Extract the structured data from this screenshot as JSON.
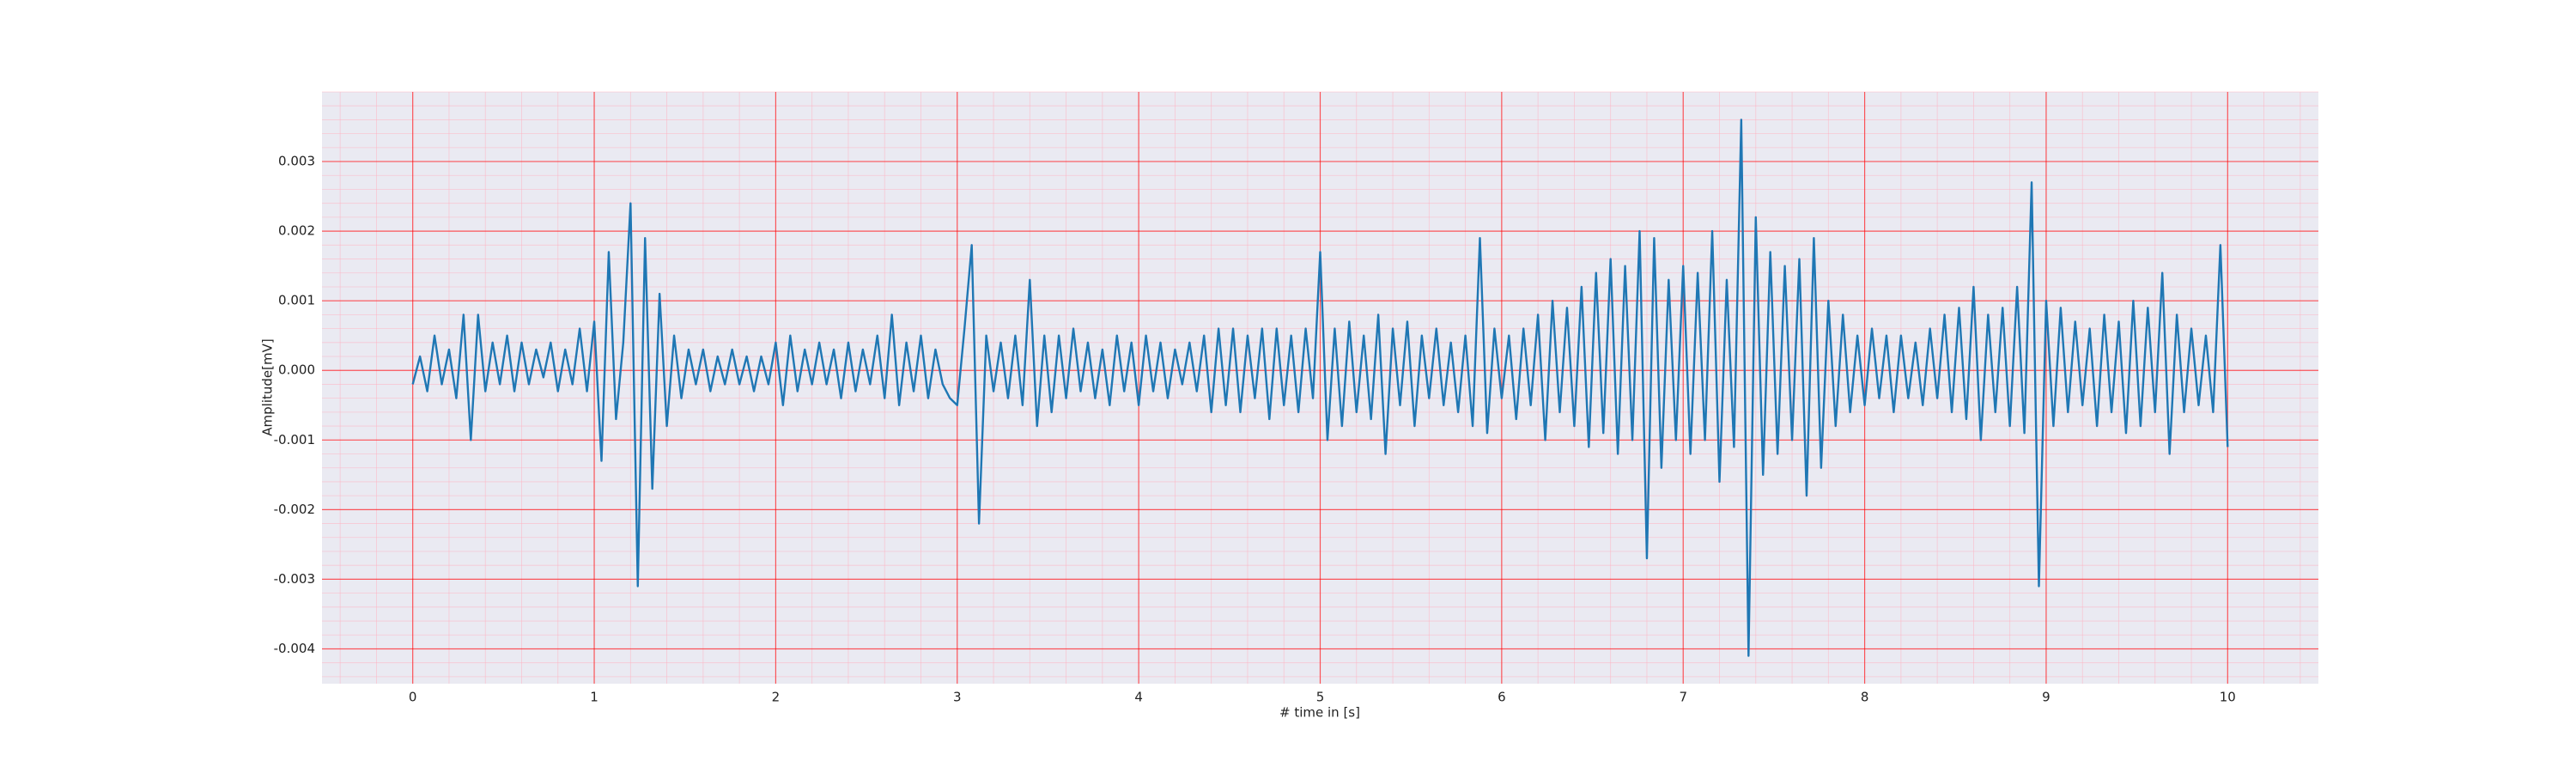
{
  "chart_data": {
    "type": "line",
    "xlabel": "# time in [s]",
    "ylabel": "Amplitude[mV]",
    "color": "#1f77b4",
    "grid": true,
    "minor_grid": true,
    "xlim": [
      -0.5,
      10.5
    ],
    "ylim": [
      -0.0045,
      0.004
    ],
    "xticks": [
      0,
      1,
      2,
      3,
      4,
      5,
      6,
      7,
      8,
      9,
      10
    ],
    "yticks": [
      -0.004,
      -0.003,
      -0.002,
      -0.001,
      {
        "value": 0,
        "label": "0.000"
      },
      0.001,
      0.002,
      0.003
    ],
    "x": [
      0,
      0.04,
      0.08,
      0.12,
      0.16,
      0.2,
      0.24,
      0.28,
      0.32,
      0.36,
      0.4,
      0.44,
      0.48,
      0.52,
      0.56,
      0.6,
      0.64,
      0.68,
      0.72,
      0.76,
      0.8,
      0.84,
      0.88,
      0.92,
      0.96,
      1,
      1.04,
      1.08,
      1.12,
      1.16,
      1.2,
      1.24,
      1.28,
      1.32,
      1.36,
      1.4,
      1.44,
      1.48,
      1.52,
      1.56,
      1.6,
      1.64,
      1.68,
      1.72,
      1.76,
      1.8,
      1.84,
      1.88,
      1.92,
      1.96,
      2,
      2.04,
      2.08,
      2.12,
      2.16,
      2.2,
      2.24,
      2.28,
      2.32,
      2.36,
      2.4,
      2.44,
      2.48,
      2.52,
      2.56,
      2.6,
      2.64,
      2.68,
      2.72,
      2.76,
      2.8,
      2.84,
      2.88,
      2.92,
      2.96,
      3,
      3.04,
      3.08,
      3.12,
      3.16,
      3.2,
      3.24,
      3.28,
      3.32,
      3.36,
      3.4,
      3.44,
      3.48,
      3.52,
      3.56,
      3.6,
      3.64,
      3.68,
      3.72,
      3.76,
      3.8,
      3.84,
      3.88,
      3.92,
      3.96,
      4,
      4.04,
      4.08,
      4.12,
      4.16,
      4.2,
      4.24,
      4.28,
      4.32,
      4.36,
      4.4,
      4.44,
      4.48,
      4.52,
      4.56,
      4.6,
      4.64,
      4.68,
      4.72,
      4.76,
      4.8,
      4.84,
      4.88,
      4.92,
      4.96,
      5,
      5.04,
      5.08,
      5.12,
      5.16,
      5.2,
      5.24,
      5.28,
      5.32,
      5.36,
      5.4,
      5.44,
      5.48,
      5.52,
      5.56,
      5.6,
      5.64,
      5.68,
      5.72,
      5.76,
      5.8,
      5.84,
      5.88,
      5.92,
      5.96,
      6,
      6.04,
      6.08,
      6.12,
      6.16,
      6.2,
      6.24,
      6.28,
      6.32,
      6.36,
      6.4,
      6.44,
      6.48,
      6.52,
      6.56,
      6.6,
      6.64,
      6.68,
      6.72,
      6.76,
      6.8,
      6.84,
      6.88,
      6.92,
      6.96,
      7,
      7.04,
      7.08,
      7.12,
      7.16,
      7.2,
      7.24,
      7.28,
      7.32,
      7.36,
      7.4,
      7.44,
      7.48,
      7.52,
      7.56,
      7.6,
      7.64,
      7.68,
      7.72,
      7.76,
      7.8,
      7.84,
      7.88,
      7.92,
      7.96,
      8,
      8.04,
      8.08,
      8.12,
      8.16,
      8.2,
      8.24,
      8.28,
      8.32,
      8.36,
      8.4,
      8.44,
      8.48,
      8.52,
      8.56,
      8.6,
      8.64,
      8.68,
      8.72,
      8.76,
      8.8,
      8.84,
      8.88,
      8.92,
      8.96,
      9,
      9.04,
      9.08,
      9.12,
      9.16,
      9.2,
      9.24,
      9.28,
      9.32,
      9.36,
      9.4,
      9.44,
      9.48,
      9.52,
      9.56,
      9.6,
      9.64,
      9.68,
      9.72,
      9.76,
      9.8,
      9.84,
      9.88,
      9.92,
      9.96,
      10
    ],
    "values": [
      -0.0002,
      0.0002,
      -0.0003,
      0.0005,
      -0.0002,
      0.0003,
      -0.0004,
      0.0008,
      -0.001,
      0.0008,
      -0.0003,
      0.0004,
      -0.0002,
      0.0005,
      -0.0003,
      0.0004,
      -0.0002,
      0.0003,
      -0.0001,
      0.0004,
      -0.0003,
      0.0003,
      -0.0002,
      0.0006,
      -0.0003,
      0.0007,
      -0.0013,
      0.0017,
      -0.0007,
      0.0004,
      0.0024,
      -0.0031,
      0.0019,
      -0.0017,
      0.0011,
      -0.0008,
      0.0005,
      -0.0004,
      0.0003,
      -0.0002,
      0.0003,
      -0.0003,
      0.0002,
      -0.0002,
      0.0003,
      -0.0002,
      0.0002,
      -0.0003,
      0.0002,
      -0.0002,
      0.0004,
      -0.0005,
      0.0005,
      -0.0003,
      0.0003,
      -0.0002,
      0.0004,
      -0.0002,
      0.0003,
      -0.0004,
      0.0004,
      -0.0003,
      0.0003,
      -0.0002,
      0.0005,
      -0.0004,
      0.0008,
      -0.0005,
      0.0004,
      -0.0003,
      0.0005,
      -0.0004,
      0.0003,
      -0.0002,
      -0.0004,
      -0.0005,
      0.0006,
      0.0018,
      -0.0022,
      0.0005,
      -0.0003,
      0.0004,
      -0.0004,
      0.0005,
      -0.0005,
      0.0013,
      -0.0008,
      0.0005,
      -0.0006,
      0.0005,
      -0.0004,
      0.0006,
      -0.0003,
      0.0004,
      -0.0004,
      0.0003,
      -0.0005,
      0.0005,
      -0.0003,
      0.0004,
      -0.0005,
      0.0005,
      -0.0003,
      0.0004,
      -0.0004,
      0.0003,
      -0.0002,
      0.0004,
      -0.0003,
      0.0005,
      -0.0006,
      0.0006,
      -0.0005,
      0.0006,
      -0.0006,
      0.0005,
      -0.0004,
      0.0006,
      -0.0007,
      0.0006,
      -0.0005,
      0.0005,
      -0.0006,
      0.0006,
      -0.0004,
      0.0017,
      -0.001,
      0.0006,
      -0.0008,
      0.0007,
      -0.0006,
      0.0005,
      -0.0007,
      0.0008,
      -0.0012,
      0.0006,
      -0.0005,
      0.0007,
      -0.0008,
      0.0005,
      -0.0004,
      0.0006,
      -0.0005,
      0.0004,
      -0.0006,
      0.0005,
      -0.0008,
      0.0019,
      -0.0009,
      0.0006,
      -0.0004,
      0.0005,
      -0.0007,
      0.0006,
      -0.0005,
      0.0008,
      -0.001,
      0.001,
      -0.0006,
      0.0009,
      -0.0008,
      0.0012,
      -0.0011,
      0.0014,
      -0.0009,
      0.0016,
      -0.0012,
      0.0015,
      -0.001,
      0.002,
      -0.0027,
      0.0019,
      -0.0014,
      0.0013,
      -0.001,
      0.0015,
      -0.0012,
      0.0014,
      -0.001,
      0.002,
      -0.0016,
      0.0013,
      -0.0011,
      0.0036,
      -0.0041,
      0.0022,
      -0.0015,
      0.0017,
      -0.0012,
      0.0015,
      -0.001,
      0.0016,
      -0.0018,
      0.0019,
      -0.0014,
      0.001,
      -0.0008,
      0.0008,
      -0.0006,
      0.0005,
      -0.0005,
      0.0006,
      -0.0004,
      0.0005,
      -0.0006,
      0.0005,
      -0.0004,
      0.0004,
      -0.0005,
      0.0006,
      -0.0004,
      0.0008,
      -0.0006,
      0.0009,
      -0.0007,
      0.0012,
      -0.001,
      0.0008,
      -0.0006,
      0.0009,
      -0.0008,
      0.0012,
      -0.0009,
      0.0027,
      -0.0031,
      0.001,
      -0.0008,
      0.0009,
      -0.0006,
      0.0007,
      -0.0005,
      0.0006,
      -0.0008,
      0.0008,
      -0.0006,
      0.0007,
      -0.0009,
      0.001,
      -0.0008,
      0.0009,
      -0.0006,
      0.0014,
      -0.0012,
      0.0008,
      -0.0006,
      0.0006,
      -0.0005,
      0.0005,
      -0.0006,
      0.0018,
      -0.0011
    ]
  }
}
